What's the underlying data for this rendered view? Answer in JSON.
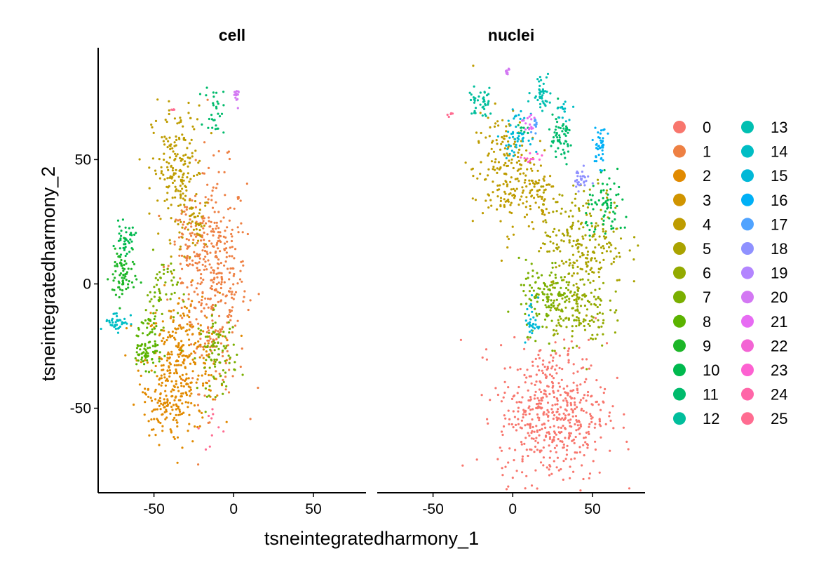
{
  "chart_data": {
    "type": "scatter",
    "subtype": "tsne-faceted",
    "xlabel": "tsneintegratedharmony_1",
    "ylabel": "tsneintegratedharmony_2",
    "xlim": [
      -85,
      83
    ],
    "ylim": [
      -84,
      95
    ],
    "x_ticks": [
      {
        "value": -50,
        "label": "-50"
      },
      {
        "value": 0,
        "label": "0"
      },
      {
        "value": 50,
        "label": "50"
      }
    ],
    "y_ticks": [
      {
        "value": -50,
        "label": "-50"
      },
      {
        "value": 0,
        "label": "0"
      },
      {
        "value": 50,
        "label": "50"
      }
    ],
    "grid": false,
    "legend_position": "right",
    "legend_columns": 2,
    "facets": [
      {
        "title": "cell",
        "clusters": [
          {
            "cluster": "1",
            "center": [
              -12,
              2
            ],
            "spread": [
              10,
              22
            ],
            "n": 380
          },
          {
            "cluster": "1",
            "center": [
              -28,
              14
            ],
            "spread": [
              6,
              8
            ],
            "n": 70
          },
          {
            "cluster": "2",
            "center": [
              -33,
              -32
            ],
            "spread": [
              12,
              14
            ],
            "n": 300
          },
          {
            "cluster": "2",
            "center": [
              -44,
              -47
            ],
            "spread": [
              6,
              8
            ],
            "n": 90
          },
          {
            "cluster": "4",
            "center": [
              -35,
              45
            ],
            "spread": [
              8,
              13
            ],
            "n": 200
          },
          {
            "cluster": "4",
            "center": [
              -22,
              22
            ],
            "spread": [
              4,
              4
            ],
            "n": 30
          },
          {
            "cluster": "7",
            "center": [
              -10,
              -28
            ],
            "spread": [
              6,
              8
            ],
            "n": 90
          },
          {
            "cluster": "7",
            "center": [
              -45,
              -2
            ],
            "spread": [
              5,
              7
            ],
            "n": 50
          },
          {
            "cluster": "8",
            "center": [
              -55,
              -28
            ],
            "spread": [
              5,
              3
            ],
            "n": 60
          },
          {
            "cluster": "8",
            "center": [
              -52,
              -18
            ],
            "spread": [
              3,
              5
            ],
            "n": 30
          },
          {
            "cluster": "9",
            "center": [
              -70,
              3
            ],
            "spread": [
              4,
              6
            ],
            "n": 70
          },
          {
            "cluster": "10",
            "center": [
              -68,
              18
            ],
            "spread": [
              3,
              3
            ],
            "n": 40
          },
          {
            "cluster": "11",
            "center": [
              -12,
              70
            ],
            "spread": [
              3,
              5
            ],
            "n": 30
          },
          {
            "cluster": "14",
            "center": [
              -73,
              -15
            ],
            "spread": [
              4,
              2
            ],
            "n": 40
          },
          {
            "cluster": "20",
            "center": [
              1,
              75
            ],
            "spread": [
              1,
              2
            ],
            "n": 15
          },
          {
            "cluster": "25",
            "center": [
              -15,
              -58
            ],
            "spread": [
              3,
              5
            ],
            "n": 10
          },
          {
            "cluster": "25",
            "center": [
              -38,
              70
            ],
            "spread": [
              1,
              1
            ],
            "n": 5
          }
        ]
      },
      {
        "title": "nuclei",
        "clusters": [
          {
            "cluster": "0",
            "center": [
              25,
              -52
            ],
            "spread": [
              17,
              14
            ],
            "n": 520
          },
          {
            "cluster": "4",
            "center": [
              -5,
              45
            ],
            "spread": [
              10,
              12
            ],
            "n": 200
          },
          {
            "cluster": "4",
            "center": [
              15,
              36
            ],
            "spread": [
              6,
              6
            ],
            "n": 60
          },
          {
            "cluster": "5",
            "center": [
              45,
              18
            ],
            "spread": [
              13,
              10
            ],
            "n": 220
          },
          {
            "cluster": "6",
            "center": [
              40,
              -10
            ],
            "spread": [
              10,
              8
            ],
            "n": 160
          },
          {
            "cluster": "7",
            "center": [
              20,
              -5
            ],
            "spread": [
              8,
              7
            ],
            "n": 120
          },
          {
            "cluster": "10",
            "center": [
              60,
              30
            ],
            "spread": [
              7,
              6
            ],
            "n": 70
          },
          {
            "cluster": "11",
            "center": [
              30,
              58
            ],
            "spread": [
              4,
              5
            ],
            "n": 60
          },
          {
            "cluster": "11",
            "center": [
              5,
              62
            ],
            "spread": [
              2,
              2
            ],
            "n": 10
          },
          {
            "cluster": "12",
            "center": [
              -20,
              73
            ],
            "spread": [
              4,
              3
            ],
            "n": 40
          },
          {
            "cluster": "13",
            "center": [
              18,
              78
            ],
            "spread": [
              3,
              4
            ],
            "n": 40
          },
          {
            "cluster": "14",
            "center": [
              32,
              70
            ],
            "spread": [
              2,
              2
            ],
            "n": 15
          },
          {
            "cluster": "15",
            "center": [
              2,
              60
            ],
            "spread": [
              4,
              4
            ],
            "n": 50
          },
          {
            "cluster": "15",
            "center": [
              12,
              -15
            ],
            "spread": [
              2,
              5
            ],
            "n": 30
          },
          {
            "cluster": "16",
            "center": [
              55,
              55
            ],
            "spread": [
              2,
              4
            ],
            "n": 40
          },
          {
            "cluster": "17",
            "center": [
              14,
              65
            ],
            "spread": [
              1,
              2
            ],
            "n": 10
          },
          {
            "cluster": "18",
            "center": [
              42,
              42
            ],
            "spread": [
              3,
              2
            ],
            "n": 30
          },
          {
            "cluster": "20",
            "center": [
              -3,
              85
            ],
            "spread": [
              1,
              1
            ],
            "n": 10
          },
          {
            "cluster": "21",
            "center": [
              10,
              64
            ],
            "spread": [
              2,
              2
            ],
            "n": 15
          },
          {
            "cluster": "23",
            "center": [
              12,
              50
            ],
            "spread": [
              3,
              2
            ],
            "n": 12
          },
          {
            "cluster": "25",
            "center": [
              -40,
              68
            ],
            "spread": [
              1,
              1
            ],
            "n": 5
          }
        ]
      }
    ],
    "legend": [
      {
        "label": "0",
        "color": "#F8766D"
      },
      {
        "label": "1",
        "color": "#EE8043"
      },
      {
        "label": "2",
        "color": "#E18A00"
      },
      {
        "label": "3",
        "color": "#D09400"
      },
      {
        "label": "4",
        "color": "#BE9C00"
      },
      {
        "label": "5",
        "color": "#AAA300"
      },
      {
        "label": "6",
        "color": "#93AA00"
      },
      {
        "label": "7",
        "color": "#7AAF00"
      },
      {
        "label": "8",
        "color": "#5BB300"
      },
      {
        "label": "9",
        "color": "#1DB628"
      },
      {
        "label": "10",
        "color": "#00B94E"
      },
      {
        "label": "11",
        "color": "#00BB6C"
      },
      {
        "label": "12",
        "color": "#00BE9C"
      },
      {
        "label": "13",
        "color": "#00BFB1"
      },
      {
        "label": "14",
        "color": "#00BDC4"
      },
      {
        "label": "15",
        "color": "#00B8D7"
      },
      {
        "label": "16",
        "color": "#00B0F6"
      },
      {
        "label": "17",
        "color": "#50A3FF"
      },
      {
        "label": "18",
        "color": "#8F91FF"
      },
      {
        "label": "19",
        "color": "#B385FF"
      },
      {
        "label": "20",
        "color": "#D378F3"
      },
      {
        "label": "21",
        "color": "#E76BF3"
      },
      {
        "label": "22",
        "color": "#F364D4"
      },
      {
        "label": "23",
        "color": "#FD61D1"
      },
      {
        "label": "24",
        "color": "#FF66A8"
      },
      {
        "label": "25",
        "color": "#FF6C91"
      }
    ]
  }
}
